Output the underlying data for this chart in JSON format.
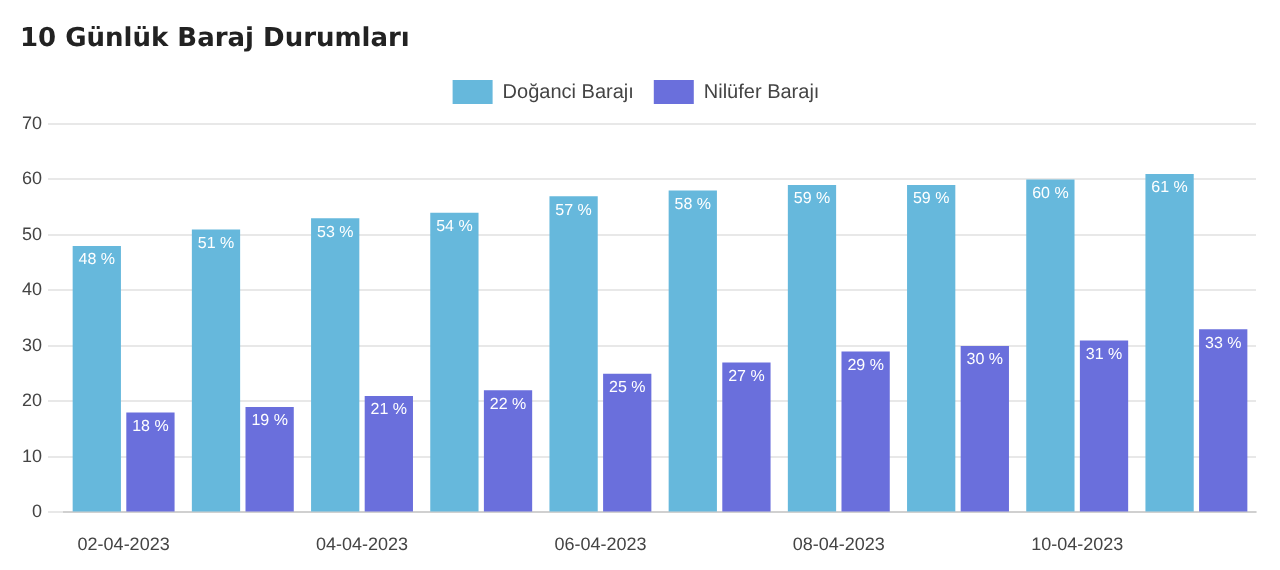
{
  "chart_data": {
    "type": "bar",
    "title": "10 Günlük Baraj Durumları",
    "categories": [
      "02-04-2023",
      null,
      "04-04-2023",
      null,
      "06-04-2023",
      null,
      "08-04-2023",
      null,
      "10-04-2023",
      null
    ],
    "series": [
      {
        "name": "Doğanci Barajı",
        "color": "#66b8dc",
        "values": [
          48,
          51,
          53,
          54,
          57,
          58,
          59,
          59,
          60,
          61
        ],
        "value_labels": [
          "48 %",
          "51 %",
          "53 %",
          "54 %",
          "57 %",
          "58 %",
          "59 %",
          "59 %",
          "60 %",
          "61 %"
        ]
      },
      {
        "name": "Nilüfer Barajı",
        "color": "#6a6fdc",
        "values": [
          18,
          19,
          21,
          22,
          25,
          27,
          29,
          30,
          31,
          33
        ],
        "value_labels": [
          "18 %",
          "19 %",
          "21 %",
          "22 %",
          "25 %",
          "27 %",
          "29 %",
          "30 %",
          "31 %",
          "33 %"
        ]
      }
    ],
    "ylim": [
      0,
      70
    ],
    "yticks": [
      0,
      10,
      20,
      30,
      40,
      50,
      60,
      70
    ],
    "grid": "y",
    "legend": "top"
  }
}
